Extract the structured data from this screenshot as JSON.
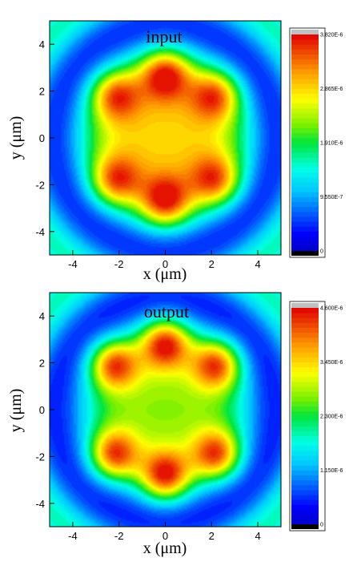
{
  "chart_data": [
    {
      "type": "heatmap",
      "title": "input",
      "xlabel": "x (μm)",
      "ylabel": "y (μm)",
      "xlim": [
        -5,
        5
      ],
      "ylim": [
        -5,
        5
      ],
      "xticks": [
        "-4",
        "-2",
        "0",
        "2",
        "4"
      ],
      "yticks": [
        "4",
        "2",
        "0",
        "-2",
        "-4"
      ],
      "colorbar": {
        "range": [
          0,
          3.82e-06
        ],
        "ticks": [
          "3.820E-6",
          "2.865E-6",
          "1.910E-6",
          "9.550E-7",
          "0"
        ]
      },
      "peaks": [
        {
          "x": 0,
          "y": 2.75,
          "value": 3.75e-06
        },
        {
          "x": 0,
          "y": -2.75,
          "value": 3.75e-06
        },
        {
          "x": -2.2,
          "y": 1.85,
          "value": 3.55e-06
        },
        {
          "x": 2.2,
          "y": 1.85,
          "value": 3.55e-06
        },
        {
          "x": -2.2,
          "y": -1.85,
          "value": 3.55e-06
        },
        {
          "x": 2.2,
          "y": -1.85,
          "value": 3.55e-06
        }
      ],
      "center_value": 2.9e-06
    },
    {
      "type": "heatmap",
      "title": "output",
      "xlabel": "x (μm)",
      "ylabel": "y (μm)",
      "xlim": [
        -5,
        5
      ],
      "ylim": [
        -5,
        5
      ],
      "xticks": [
        "-4",
        "-2",
        "0",
        "2",
        "4"
      ],
      "yticks": [
        "4",
        "2",
        "0",
        "-2",
        "-4"
      ],
      "colorbar": {
        "range": [
          0,
          4.6e-06
        ],
        "ticks": [
          "4.600E-6",
          "3.450E-6",
          "2.300E-6",
          "1.150E-6",
          "0"
        ]
      },
      "peaks": [
        {
          "x": 0,
          "y": 2.85,
          "value": 4.5e-06
        },
        {
          "x": 0,
          "y": -2.85,
          "value": 4.5e-06
        },
        {
          "x": -2.25,
          "y": 1.95,
          "value": 4.35e-06
        },
        {
          "x": 2.25,
          "y": 1.95,
          "value": 4.35e-06
        },
        {
          "x": -2.25,
          "y": -1.95,
          "value": 4.35e-06
        },
        {
          "x": 2.25,
          "y": -1.95,
          "value": 4.35e-06
        }
      ],
      "center_value": 2.8e-06
    }
  ]
}
